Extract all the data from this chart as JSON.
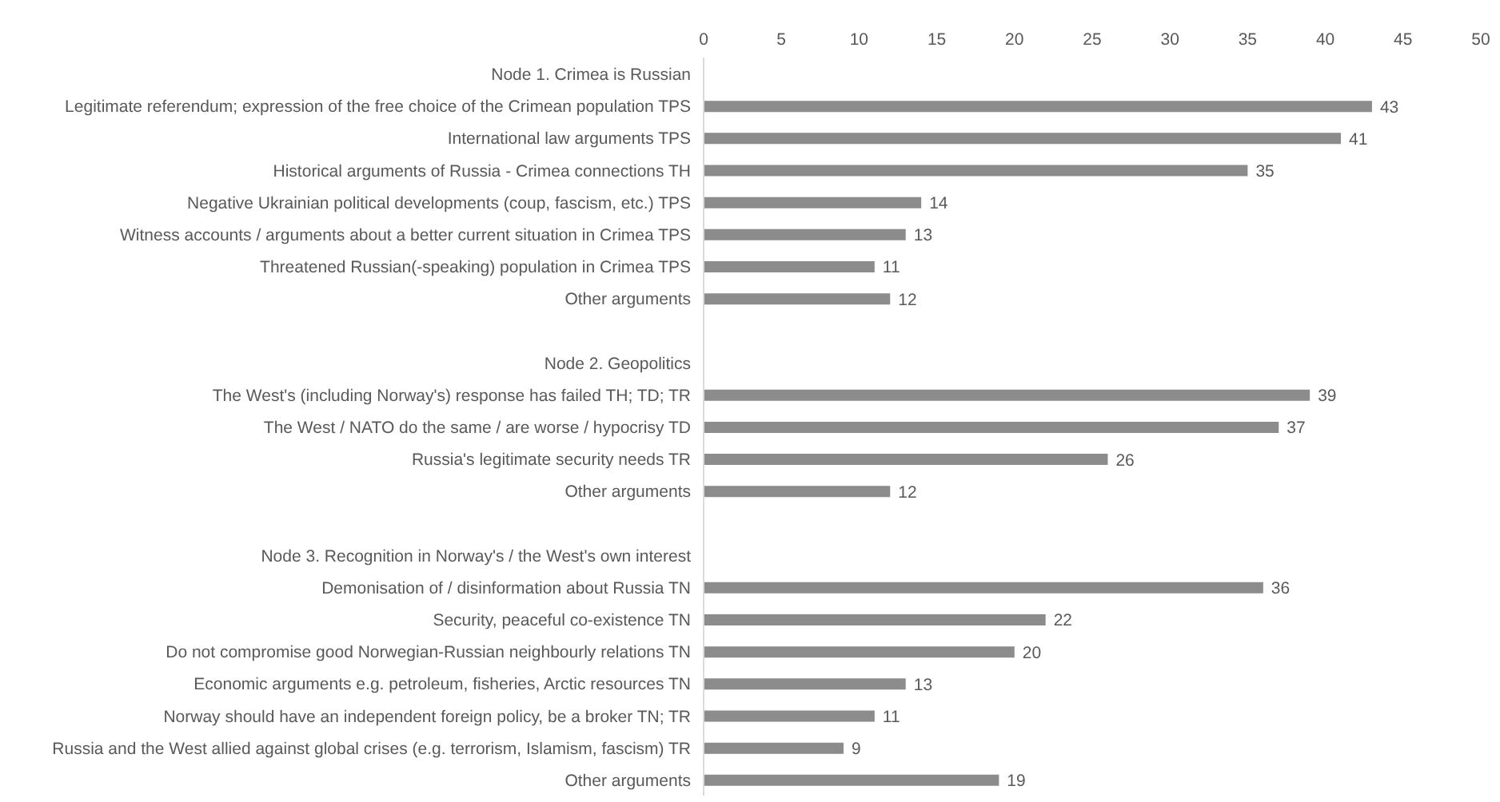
{
  "chart_data": {
    "type": "bar",
    "orientation": "horizontal",
    "categories": [
      "Node 1. Crimea is Russian",
      "Legitimate referendum; expression of the free choice of the Crimean population TPS",
      "International law arguments TPS",
      "Historical arguments of Russia - Crimea connections TH",
      "Negative Ukrainian political developments (coup, fascism, etc.) TPS",
      "Witness accounts / arguments about a better current situation in Crimea TPS",
      "Threatened Russian(-speaking) population in Crimea TPS",
      "Other arguments",
      null,
      "Node 2. Geopolitics",
      "The West's (including Norway's) response has failed  TH; TD; TR",
      "The West / NATO do the same / are worse / hypocrisy TD",
      "Russia's legitimate security needs TR",
      "Other arguments",
      null,
      "Node 3. Recognition in Norway's / the West's own interest",
      "Demonisation of / disinformation about Russia TN",
      "Security, peaceful co-existence TN",
      "Do not compromise good Norwegian-Russian neighbourly relations TN",
      "Economic arguments e.g. petroleum, fisheries, Arctic resources TN",
      "Norway should have an independent foreign policy, be a broker TN; TR",
      "Russia and the West allied against global crises (e.g. terrorism, Islamism, fascism) TR",
      "Other arguments"
    ],
    "values": [
      null,
      43,
      41,
      35,
      14,
      13,
      11,
      12,
      null,
      null,
      39,
      37,
      26,
      12,
      null,
      null,
      36,
      22,
      20,
      13,
      11,
      9,
      19
    ],
    "color": "#8c8c8c",
    "xlim": [
      0,
      50
    ],
    "xticks": [
      0,
      5,
      10,
      15,
      20,
      25,
      30,
      35,
      40,
      45,
      50
    ],
    "data_labels": true
  }
}
